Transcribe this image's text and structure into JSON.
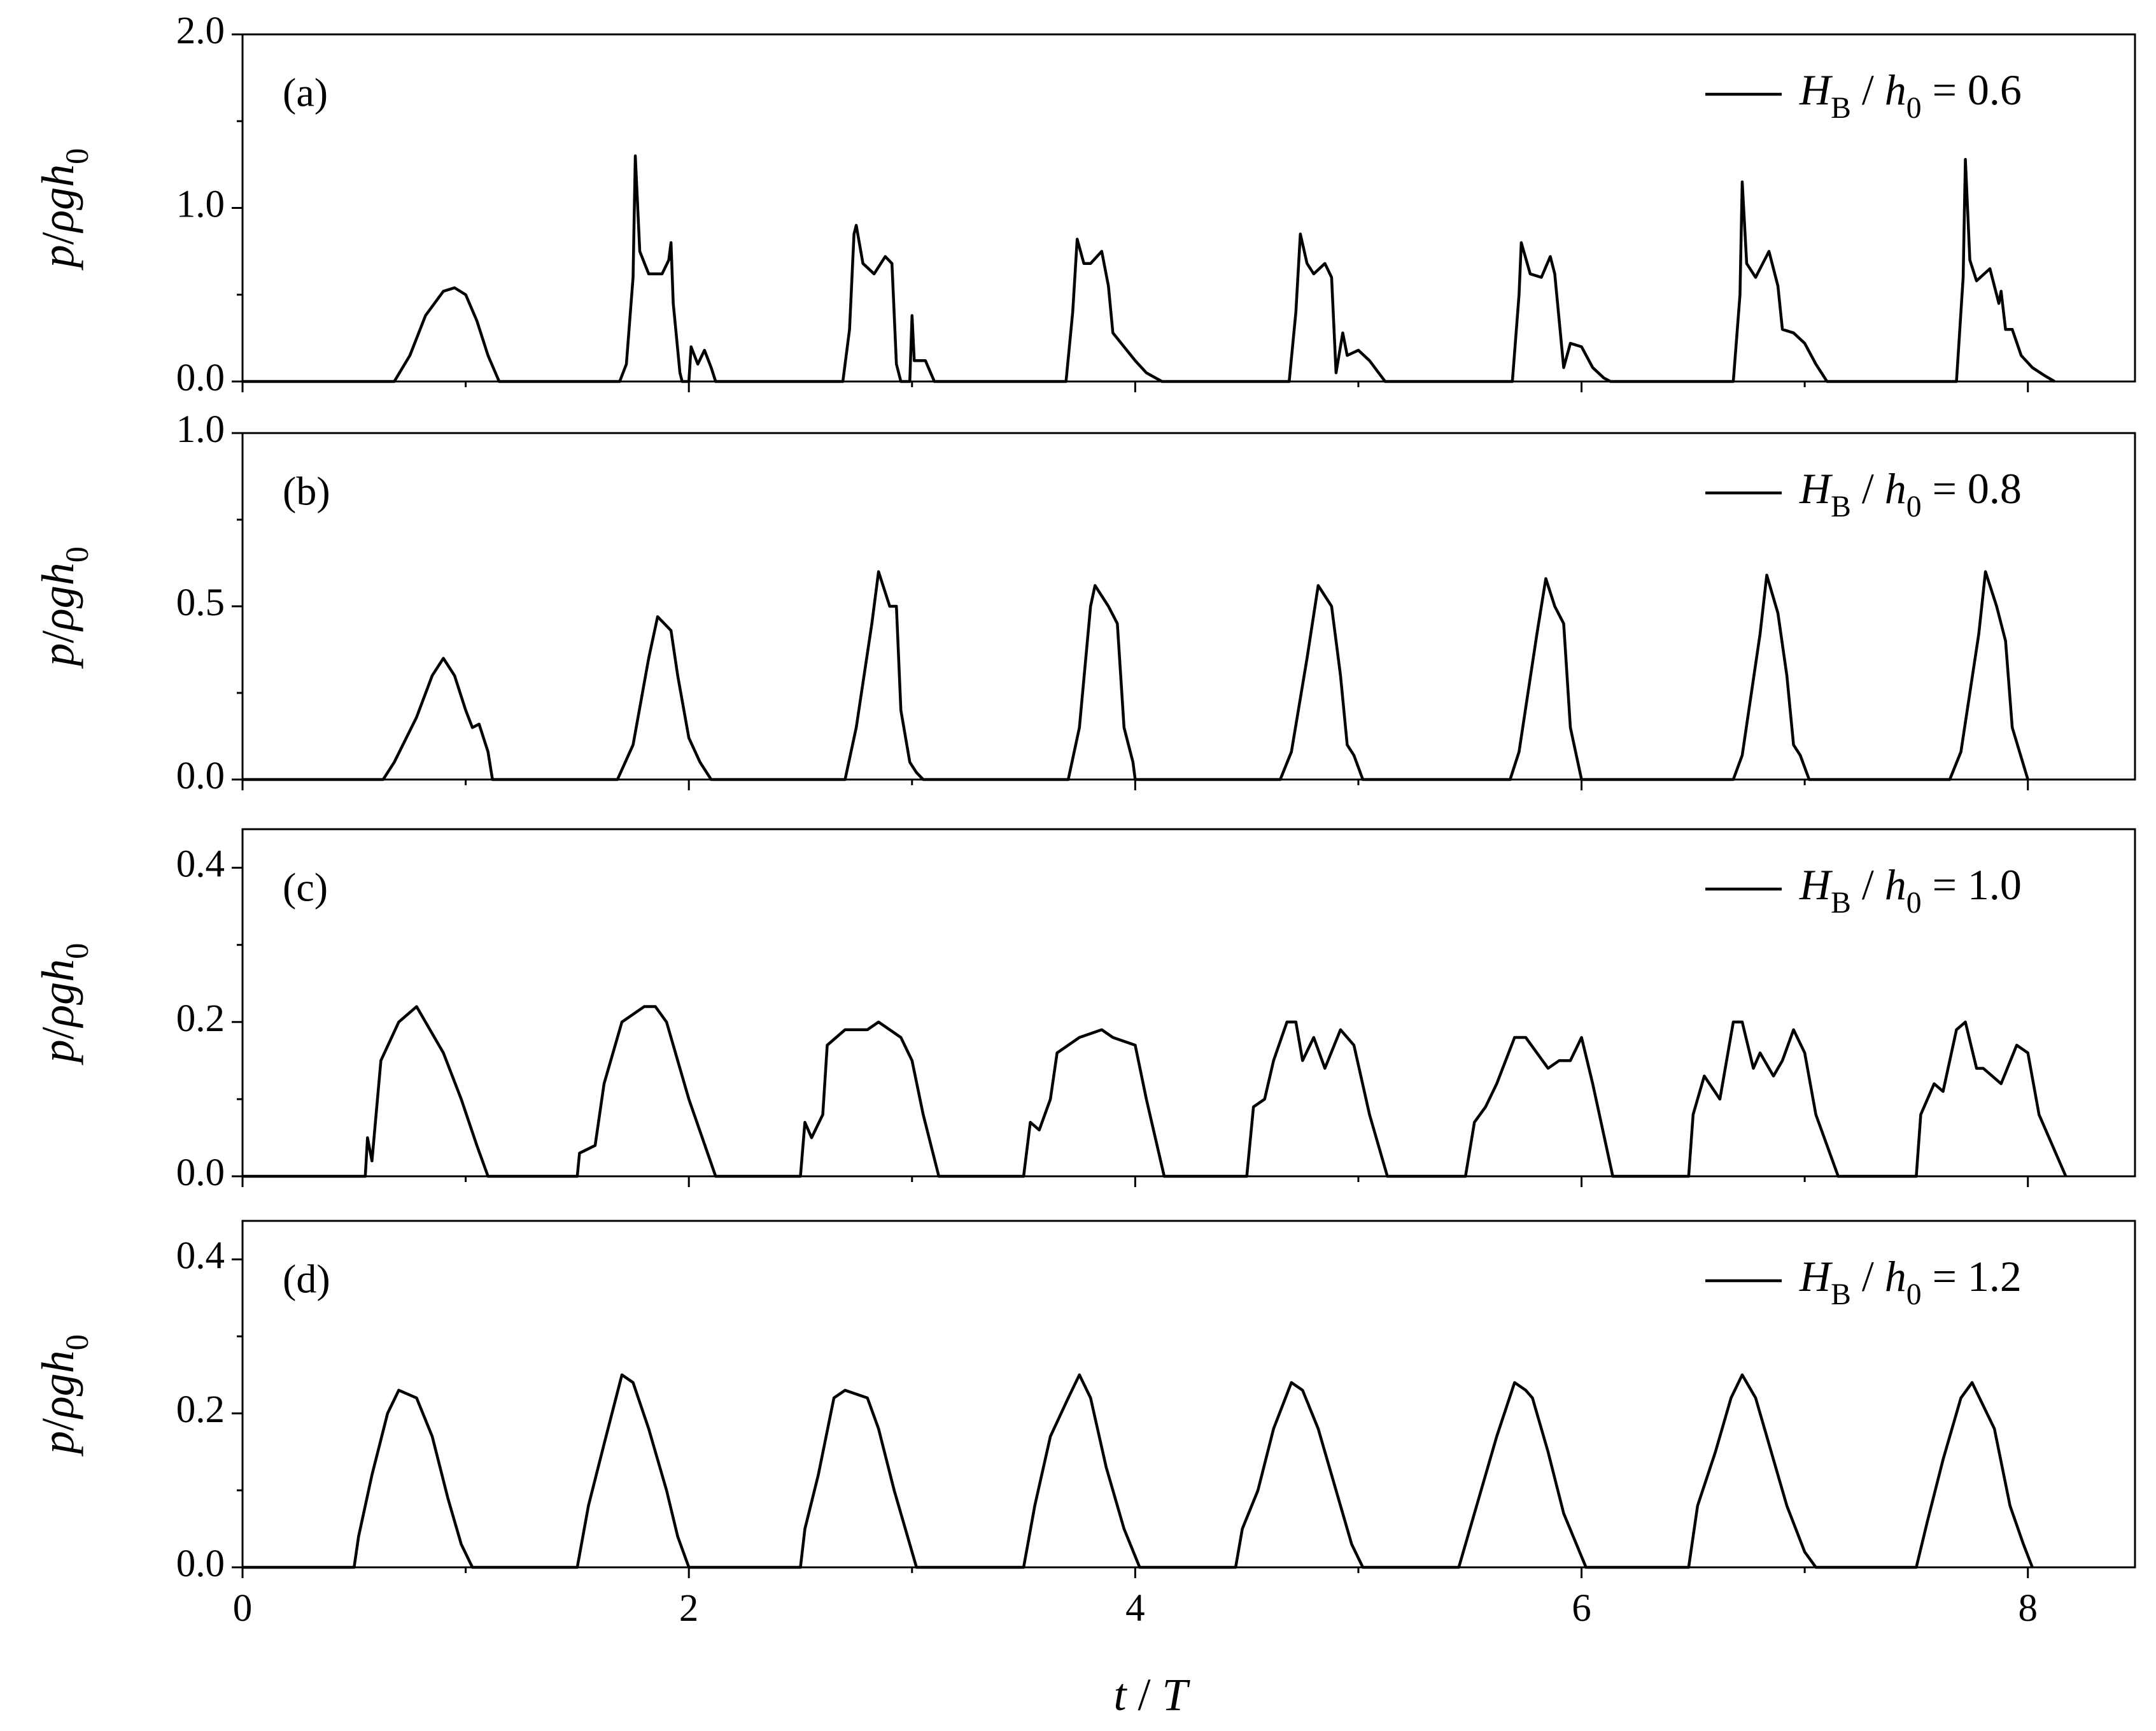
{
  "chart_data": [
    {
      "type": "line",
      "panel_label": "(a)",
      "ylabel": "p/ρgh0",
      "xlim": [
        0,
        8.48
      ],
      "ylim": [
        0,
        2
      ],
      "xminor_ticks": [
        1,
        3,
        5,
        7
      ],
      "yticks": [
        {
          "value": 0,
          "label": "0.0"
        },
        {
          "value": 1,
          "label": "1.0"
        },
        {
          "value": 2,
          "label": "2.0"
        }
      ],
      "yminor_ticks": [
        0.5,
        1.5
      ],
      "x": [
        0,
        0.68,
        0.75,
        0.82,
        0.9,
        0.95,
        1.0,
        1.05,
        1.1,
        1.15,
        1.69,
        1.72,
        1.75,
        1.76,
        1.78,
        1.82,
        1.88,
        1.91,
        1.92,
        1.93,
        1.96,
        1.97,
        2.0,
        2.01,
        2.04,
        2.07,
        2.1,
        2.12,
        2.69,
        2.72,
        2.74,
        2.75,
        2.78,
        2.83,
        2.88,
        2.91,
        2.93,
        2.95,
        2.99,
        3.0,
        3.01,
        3.06,
        3.1,
        3.69,
        3.72,
        3.74,
        3.77,
        3.8,
        3.85,
        3.88,
        3.9,
        3.95,
        4.0,
        4.05,
        4.12,
        4.69,
        4.72,
        4.74,
        4.77,
        4.8,
        4.85,
        4.88,
        4.9,
        4.93,
        4.95,
        5.0,
        5.05,
        5.12,
        5.69,
        5.72,
        5.73,
        5.77,
        5.82,
        5.86,
        5.88,
        5.92,
        5.95,
        6.0,
        6.05,
        6.1,
        6.13,
        6.68,
        6.71,
        6.72,
        6.74,
        6.78,
        6.84,
        6.88,
        6.9,
        6.95,
        7.0,
        7.05,
        7.1,
        7.68,
        7.71,
        7.72,
        7.74,
        7.77,
        7.83,
        7.87,
        7.88,
        7.9,
        7.93,
        7.97,
        8.02,
        8.08,
        8.12
      ],
      "series": [
        {
          "name": "HB / h0 = 0.6",
          "color": "#000000",
          "values": [
            0,
            0,
            0.15,
            0.38,
            0.52,
            0.54,
            0.5,
            0.35,
            0.15,
            0,
            0,
            0.1,
            0.6,
            1.3,
            0.75,
            0.62,
            0.62,
            0.7,
            0.8,
            0.45,
            0.05,
            0,
            0,
            0.2,
            0.1,
            0.18,
            0.08,
            0,
            0,
            0.3,
            0.85,
            0.9,
            0.68,
            0.62,
            0.72,
            0.68,
            0.1,
            0,
            0,
            0.38,
            0.12,
            0.12,
            0,
            0,
            0.4,
            0.82,
            0.68,
            0.68,
            0.75,
            0.55,
            0.28,
            0.2,
            0.12,
            0.05,
            0,
            0,
            0.4,
            0.85,
            0.68,
            0.62,
            0.68,
            0.6,
            0.05,
            0.28,
            0.15,
            0.18,
            0.12,
            0,
            0,
            0.5,
            0.8,
            0.62,
            0.6,
            0.72,
            0.62,
            0.08,
            0.22,
            0.2,
            0.08,
            0.02,
            0,
            0,
            0.5,
            1.15,
            0.68,
            0.6,
            0.75,
            0.55,
            0.3,
            0.28,
            0.22,
            0.1,
            0,
            0,
            0.6,
            1.28,
            0.7,
            0.58,
            0.65,
            0.45,
            0.52,
            0.3,
            0.3,
            0.15,
            0.08,
            0.03,
            0
          ]
        }
      ]
    },
    {
      "type": "line",
      "panel_label": "(b)",
      "ylabel": "p/ρgh0",
      "xlim": [
        0,
        8.48
      ],
      "ylim": [
        0,
        1
      ],
      "xminor_ticks": [
        1,
        3,
        5,
        7
      ],
      "yticks": [
        {
          "value": 0,
          "label": "0.0"
        },
        0.5,
        {
          "value": 1,
          "label": "1.0"
        }
      ],
      "yminor_ticks": [
        0.25,
        0.75
      ],
      "x": [
        0,
        0.63,
        0.68,
        0.78,
        0.85,
        0.9,
        0.95,
        1.0,
        1.03,
        1.06,
        1.1,
        1.12,
        1.68,
        1.75,
        1.82,
        1.86,
        1.92,
        1.95,
        2.0,
        2.05,
        2.1,
        2.7,
        2.75,
        2.82,
        2.85,
        2.9,
        2.93,
        2.95,
        2.99,
        3.02,
        3.05,
        3.7,
        3.75,
        3.8,
        3.82,
        3.88,
        3.92,
        3.95,
        3.99,
        4.0,
        4.65,
        4.7,
        4.77,
        4.82,
        4.88,
        4.92,
        4.95,
        4.98,
        5.02,
        5.68,
        5.72,
        5.8,
        5.84,
        5.88,
        5.92,
        5.95,
        6.0,
        6.68,
        6.72,
        6.8,
        6.83,
        6.88,
        6.92,
        6.95,
        6.98,
        7.02,
        7.65,
        7.7,
        7.78,
        7.81,
        7.86,
        7.9,
        7.93,
        8.0
      ],
      "series": [
        {
          "name": "HB / h0 = 0.8",
          "color": "#000000",
          "values": [
            0,
            0,
            0.05,
            0.18,
            0.3,
            0.35,
            0.3,
            0.2,
            0.15,
            0.16,
            0.08,
            0,
            0,
            0.1,
            0.35,
            0.47,
            0.43,
            0.3,
            0.12,
            0.05,
            0,
            0,
            0.15,
            0.45,
            0.6,
            0.5,
            0.5,
            0.2,
            0.05,
            0.02,
            0,
            0,
            0.15,
            0.5,
            0.56,
            0.5,
            0.45,
            0.15,
            0.05,
            0,
            0,
            0.08,
            0.35,
            0.56,
            0.5,
            0.3,
            0.1,
            0.07,
            0,
            0,
            0.08,
            0.42,
            0.58,
            0.5,
            0.45,
            0.15,
            0,
            0,
            0.07,
            0.42,
            0.59,
            0.48,
            0.3,
            0.1,
            0.07,
            0,
            0,
            0.08,
            0.42,
            0.6,
            0.5,
            0.4,
            0.15,
            0
          ]
        }
      ]
    },
    {
      "type": "line",
      "panel_label": "(c)",
      "ylabel": "p/ρgh0",
      "xlim": [
        0,
        8.48
      ],
      "ylim": [
        0,
        0.45
      ],
      "xminor_ticks": [
        1,
        3,
        5,
        7
      ],
      "yticks": [
        {
          "value": 0,
          "label": "0.0"
        },
        0.2,
        0.4
      ],
      "yminor_ticks": [
        0.1,
        0.3
      ],
      "x": [
        0,
        0.55,
        0.56,
        0.58,
        0.62,
        0.7,
        0.78,
        0.82,
        0.9,
        0.98,
        1.05,
        1.1,
        1.5,
        1.51,
        1.58,
        1.62,
        1.7,
        1.8,
        1.85,
        1.9,
        2.0,
        2.12,
        2.5,
        2.52,
        2.55,
        2.6,
        2.62,
        2.7,
        2.8,
        2.85,
        2.95,
        3.0,
        3.05,
        3.12,
        3.5,
        3.53,
        3.57,
        3.62,
        3.65,
        3.75,
        3.85,
        3.9,
        4.0,
        4.05,
        4.13,
        4.5,
        4.53,
        4.58,
        4.62,
        4.68,
        4.72,
        4.75,
        4.8,
        4.85,
        4.92,
        4.98,
        5.05,
        5.13,
        5.48,
        5.52,
        5.57,
        5.62,
        5.7,
        5.75,
        5.85,
        5.9,
        5.95,
        6.0,
        6.05,
        6.14,
        6.48,
        6.5,
        6.55,
        6.62,
        6.68,
        6.72,
        6.77,
        6.8,
        6.86,
        6.9,
        6.95,
        7.0,
        7.05,
        7.15,
        7.5,
        7.52,
        7.58,
        7.62,
        7.68,
        7.72,
        7.77,
        7.8,
        7.88,
        7.95,
        8.0,
        8.05,
        8.17
      ],
      "series": [
        {
          "name": "HB / h0 = 1.0",
          "color": "#000000",
          "values": [
            0,
            0,
            0.05,
            0.02,
            0.15,
            0.2,
            0.22,
            0.2,
            0.16,
            0.1,
            0.04,
            0,
            0,
            0.03,
            0.04,
            0.12,
            0.2,
            0.22,
            0.22,
            0.2,
            0.1,
            0,
            0,
            0.07,
            0.05,
            0.08,
            0.17,
            0.19,
            0.19,
            0.2,
            0.18,
            0.15,
            0.08,
            0,
            0,
            0.07,
            0.06,
            0.1,
            0.16,
            0.18,
            0.19,
            0.18,
            0.17,
            0.1,
            0,
            0,
            0.09,
            0.1,
            0.15,
            0.2,
            0.2,
            0.15,
            0.18,
            0.14,
            0.19,
            0.17,
            0.08,
            0,
            0,
            0.07,
            0.09,
            0.12,
            0.18,
            0.18,
            0.14,
            0.15,
            0.15,
            0.18,
            0.12,
            0,
            0,
            0.08,
            0.13,
            0.1,
            0.2,
            0.2,
            0.14,
            0.16,
            0.13,
            0.15,
            0.19,
            0.16,
            0.08,
            0,
            0,
            0.08,
            0.12,
            0.11,
            0.19,
            0.2,
            0.14,
            0.14,
            0.12,
            0.17,
            0.16,
            0.08,
            0
          ]
        }
      ]
    },
    {
      "type": "line",
      "panel_label": "(d)",
      "ylabel": "p/ρgh0",
      "xlabel": "t / T",
      "xlim": [
        0,
        8.48
      ],
      "xticks": [
        0,
        2,
        4,
        6,
        8
      ],
      "xminor_ticks": [
        1,
        3,
        5,
        7
      ],
      "ylim": [
        0,
        0.45
      ],
      "yticks": [
        {
          "value": 0,
          "label": "0.0"
        },
        0.2,
        0.4
      ],
      "yminor_ticks": [
        0.1,
        0.3
      ],
      "x": [
        0,
        0.5,
        0.52,
        0.58,
        0.65,
        0.7,
        0.78,
        0.85,
        0.92,
        0.98,
        1.03,
        1.5,
        1.55,
        1.62,
        1.7,
        1.75,
        1.82,
        1.9,
        1.95,
        2.0,
        2.5,
        2.52,
        2.58,
        2.65,
        2.7,
        2.8,
        2.85,
        2.92,
        2.98,
        3.02,
        3.5,
        3.55,
        3.62,
        3.7,
        3.75,
        3.8,
        3.87,
        3.95,
        4.02,
        4.45,
        4.48,
        4.55,
        4.62,
        4.7,
        4.75,
        4.82,
        4.9,
        4.97,
        5.02,
        5.45,
        5.5,
        5.55,
        5.62,
        5.7,
        5.75,
        5.78,
        5.85,
        5.92,
        6.02,
        6.48,
        6.52,
        6.6,
        6.67,
        6.72,
        6.78,
        6.85,
        6.92,
        7.0,
        7.05,
        7.5,
        7.55,
        7.62,
        7.7,
        7.75,
        7.8,
        7.85,
        7.92,
        7.98,
        8.02
      ],
      "series": [
        {
          "name": "HB / h0 = 1.2",
          "color": "#000000",
          "values": [
            0,
            0,
            0.04,
            0.12,
            0.2,
            0.23,
            0.22,
            0.17,
            0.09,
            0.03,
            0,
            0,
            0.08,
            0.16,
            0.25,
            0.24,
            0.18,
            0.1,
            0.04,
            0,
            0,
            0.05,
            0.12,
            0.22,
            0.23,
            0.22,
            0.18,
            0.1,
            0.04,
            0,
            0,
            0.08,
            0.17,
            0.22,
            0.25,
            0.22,
            0.13,
            0.05,
            0,
            0,
            0.05,
            0.1,
            0.18,
            0.24,
            0.23,
            0.18,
            0.1,
            0.03,
            0,
            0,
            0.05,
            0.1,
            0.17,
            0.24,
            0.23,
            0.22,
            0.15,
            0.07,
            0,
            0,
            0.08,
            0.15,
            0.22,
            0.25,
            0.22,
            0.15,
            0.08,
            0.02,
            0,
            0,
            0.06,
            0.14,
            0.22,
            0.24,
            0.21,
            0.18,
            0.08,
            0.03,
            0
          ]
        }
      ]
    }
  ]
}
